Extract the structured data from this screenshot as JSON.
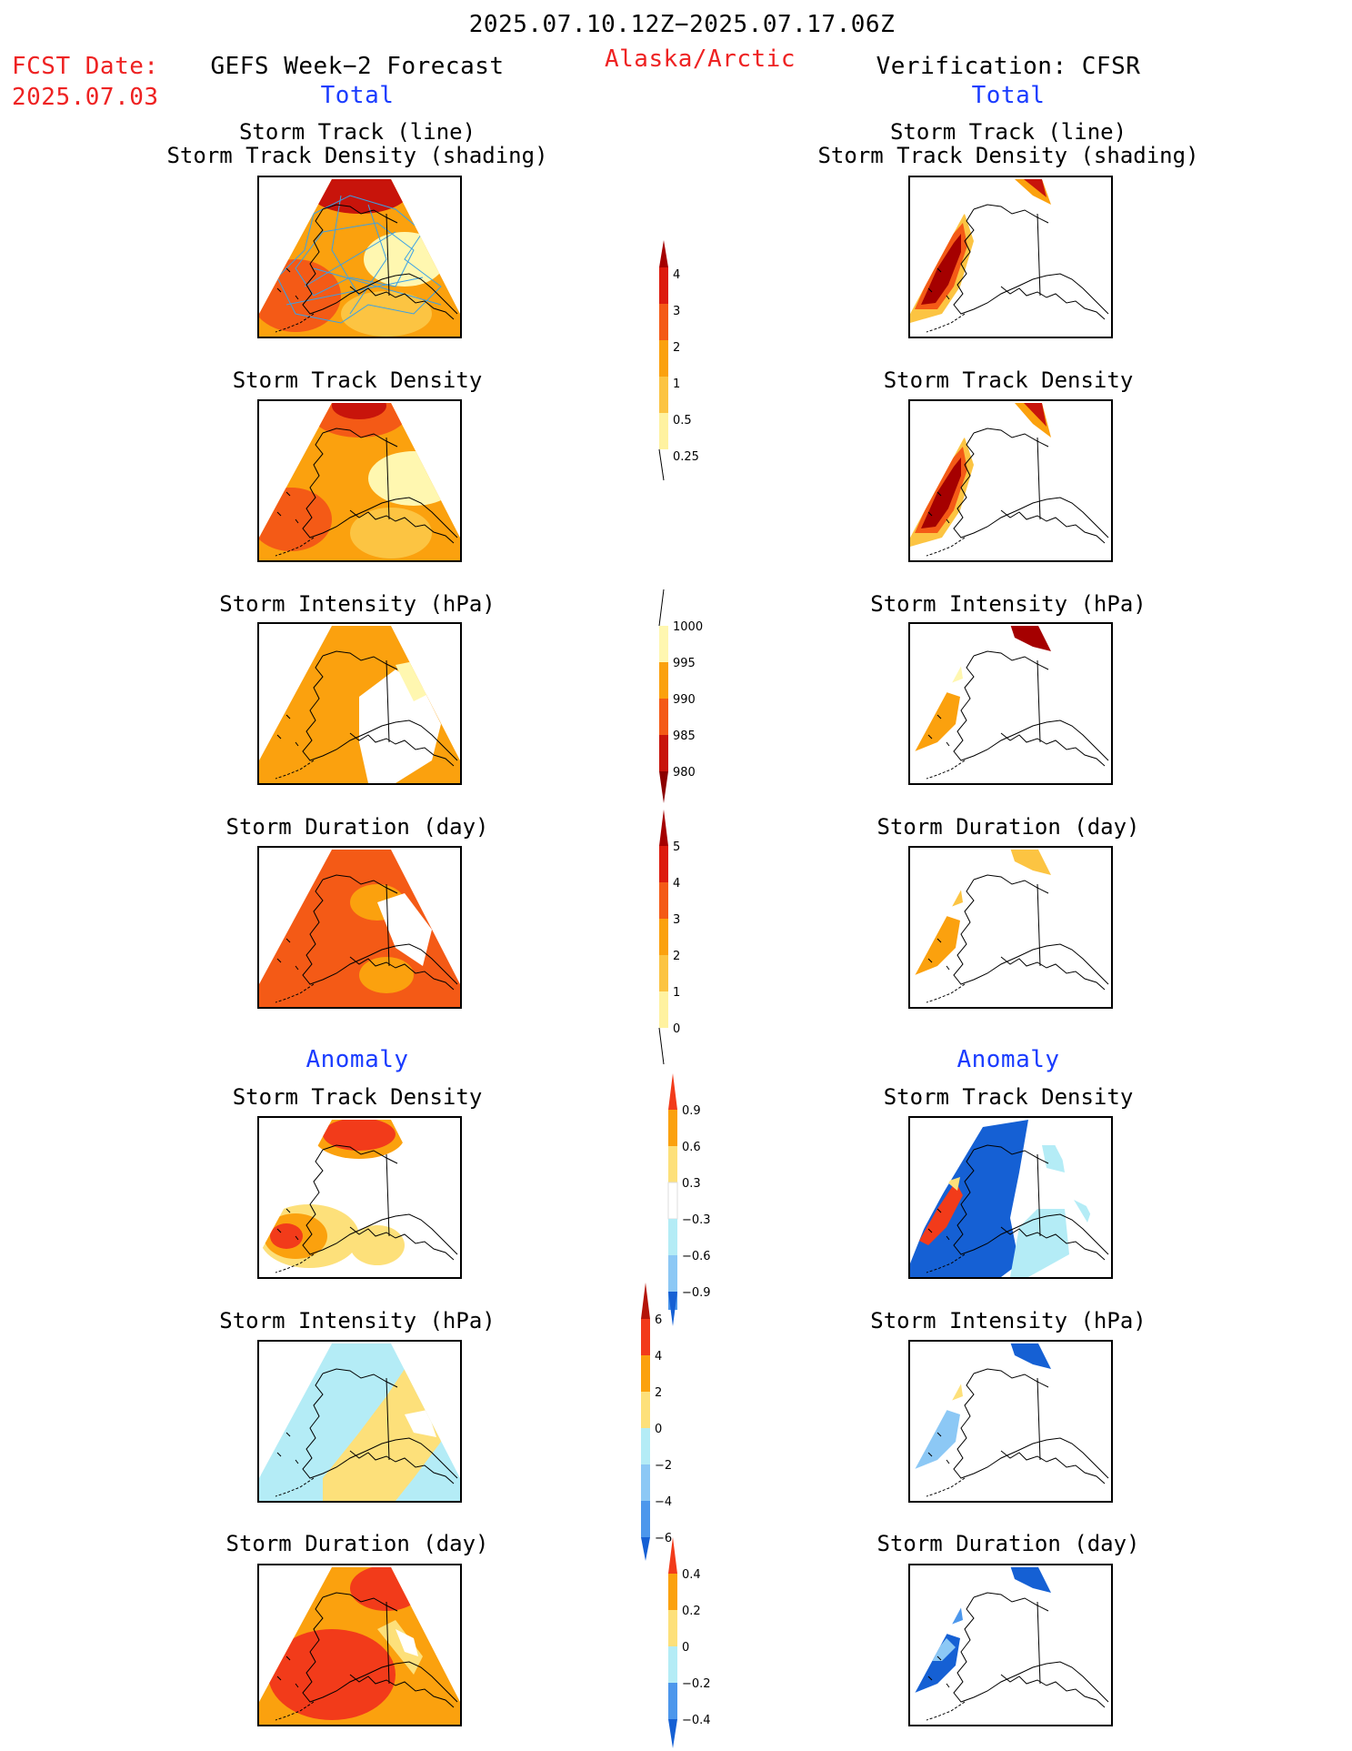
{
  "header": {
    "date_range": "2025.07.10.12Z−2025.07.17.06Z",
    "fcst_label": "FCST Date:",
    "fcst_date": "2025.07.03",
    "left_title": "GEFS Week−2 Forecast",
    "region": "Alaska/Arctic",
    "right_title": "Verification: CFSR",
    "left_section_total": "Total",
    "right_section_total": "Total",
    "left_section_anomaly": "Anomaly",
    "right_section_anomaly": "Anomaly"
  },
  "panel_titles": {
    "track_line": "Storm Track (line)",
    "track_shading": "Storm Track Density (shading)",
    "track_density": "Storm Track Density",
    "intensity": "Storm Intensity (hPa)",
    "duration": "Storm Duration (day)"
  },
  "colorbars": {
    "density_total": {
      "labels": [
        "4",
        "3",
        "2",
        "1",
        "0.5",
        "0.25"
      ],
      "colors": [
        "#a50000",
        "#dd1b0e",
        "#f45a16",
        "#fb9c0e",
        "#fcc442",
        "#fff2a0"
      ]
    },
    "intensity_total": {
      "labels": [
        "1000",
        "995",
        "990",
        "985",
        "980"
      ],
      "colors": [
        "#fff7b0",
        "#fba10e",
        "#f45a16",
        "#c8140b",
        "#8b0000"
      ]
    },
    "duration_total": {
      "labels": [
        "5",
        "4",
        "3",
        "2",
        "1",
        "0"
      ],
      "colors": [
        "#a50000",
        "#dd1b0e",
        "#f45a16",
        "#fb9c0e",
        "#fcc442",
        "#fff2a0"
      ]
    },
    "density_anomaly": {
      "labels": [
        "0.9",
        "0.6",
        "0.3",
        "−0.3",
        "−0.6",
        "−0.9"
      ],
      "colors": [
        "#f23b1a",
        "#fba10e",
        "#fde07a",
        "#ffffff",
        "#b4ecf6",
        "#8cc8f5",
        "#4c97ec",
        "#1560d4"
      ]
    },
    "intensity_anomaly": {
      "labels": [
        "6",
        "4",
        "2",
        "0",
        "−2",
        "−4",
        "−6"
      ],
      "colors": [
        "#b41408",
        "#f23b1a",
        "#fba10e",
        "#fde07a",
        "#b4ecf6",
        "#8cc8f5",
        "#4c97ec",
        "#1560d4"
      ]
    },
    "duration_anomaly": {
      "labels": [
        "0.4",
        "0.2",
        "0",
        "−0.2",
        "−0.4"
      ],
      "colors": [
        "#f23b1a",
        "#fba10e",
        "#fde07a",
        "#b4ecf6",
        "#4c97ec",
        "#1560d4"
      ]
    }
  }
}
